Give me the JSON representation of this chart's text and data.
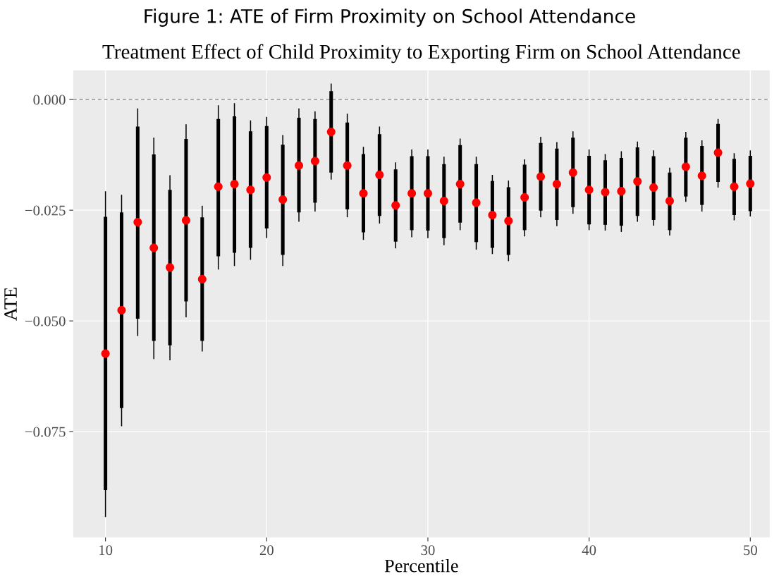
{
  "chart_data": {
    "type": "scatter",
    "title": "Figure 1: ATE of Firm Proximity on School Attendance",
    "subtitle": "Treatment Effect of Child Proximity to Exporting Firm on School Attendance",
    "xlabel": "Percentile",
    "ylabel": "ATE",
    "x": [
      10,
      11,
      12,
      13,
      14,
      15,
      16,
      17,
      18,
      19,
      20,
      21,
      22,
      23,
      24,
      25,
      26,
      27,
      28,
      29,
      30,
      31,
      32,
      33,
      34,
      35,
      36,
      37,
      38,
      39,
      40,
      41,
      42,
      43,
      44,
      45,
      46,
      47,
      48,
      49,
      50
    ],
    "series": [
      {
        "type": "bar",
        "color": "#000000",
        "base": [
          -0.0882,
          -0.0697,
          -0.0495,
          -0.0545,
          -0.0555,
          -0.0456,
          -0.0545,
          -0.0354,
          -0.0346,
          -0.0335,
          -0.0291,
          -0.0351,
          -0.0255,
          -0.0233,
          -0.0165,
          -0.0248,
          -0.03,
          -0.0263,
          -0.0321,
          -0.0295,
          -0.0296,
          -0.0313,
          -0.0278,
          -0.0322,
          -0.0335,
          -0.0351,
          -0.0295,
          -0.0251,
          -0.0272,
          -0.0243,
          -0.0282,
          -0.0283,
          -0.0285,
          -0.0263,
          -0.0272,
          -0.0295,
          -0.0219,
          -0.0238,
          -0.0186,
          -0.0261,
          -0.0252
        ],
        "values": [
          0.0617,
          0.0442,
          0.0434,
          0.0421,
          0.0351,
          0.0367,
          0.0279,
          0.031,
          0.0308,
          0.0263,
          0.0231,
          0.0249,
          0.0214,
          0.0189,
          0.0184,
          0.0196,
          0.0177,
          0.0185,
          0.0163,
          0.0167,
          0.0168,
          0.0167,
          0.0175,
          0.0176,
          0.0151,
          0.0153,
          0.0148,
          0.0153,
          0.0161,
          0.0157,
          0.0155,
          0.0146,
          0.0153,
          0.0155,
          0.0144,
          0.013,
          0.0133,
          0.0133,
          0.0131,
          0.0127,
          0.0125
        ]
      },
      {
        "color": "#ff0000",
        "marker": "circle",
        "values": [
          -0.0574,
          -0.0476,
          -0.0277,
          -0.0335,
          -0.0379,
          -0.0273,
          -0.0406,
          -0.0197,
          -0.0191,
          -0.0204,
          -0.0176,
          -0.0226,
          -0.0149,
          -0.0139,
          -0.0073,
          -0.0149,
          -0.0212,
          -0.017,
          -0.0239,
          -0.0212,
          -0.0212,
          -0.0229,
          -0.0191,
          -0.0233,
          -0.0261,
          -0.0274,
          -0.0221,
          -0.0174,
          -0.0191,
          -0.0165,
          -0.0204,
          -0.0209,
          -0.0207,
          -0.0185,
          -0.0199,
          -0.0229,
          -0.0152,
          -0.0172,
          -0.012,
          -0.0197,
          -0.019
        ],
        "errors": [
          [
            -0.0943,
            -0.0207
          ],
          [
            -0.0738,
            -0.0215
          ],
          [
            -0.0534,
            -0.002
          ],
          [
            -0.0586,
            -0.0086
          ],
          [
            -0.0589,
            -0.0171
          ],
          [
            -0.0492,
            -0.0056
          ],
          [
            -0.0569,
            -0.024
          ],
          [
            -0.0384,
            -0.0013
          ],
          [
            -0.0376,
            -0.0008
          ],
          [
            -0.0362,
            -0.0047
          ],
          [
            -0.0313,
            -0.0039
          ],
          [
            -0.0376,
            -0.008
          ],
          [
            -0.0276,
            -0.002
          ],
          [
            -0.0253,
            -0.0027
          ],
          [
            -0.0181,
            0.0036
          ],
          [
            -0.0266,
            -0.0032
          ],
          [
            -0.0317,
            -0.0107
          ],
          [
            -0.028,
            -0.0061
          ],
          [
            -0.0336,
            -0.0142
          ],
          [
            -0.0311,
            -0.0113
          ],
          [
            -0.0313,
            -0.0113
          ],
          [
            -0.0329,
            -0.0129
          ],
          [
            -0.0295,
            -0.0088
          ],
          [
            -0.0339,
            -0.0129
          ],
          [
            -0.0349,
            -0.017
          ],
          [
            -0.0365,
            -0.0183
          ],
          [
            -0.0309,
            -0.0135
          ],
          [
            -0.0266,
            -0.0084
          ],
          [
            -0.0286,
            -0.0096
          ],
          [
            -0.0258,
            -0.0072
          ],
          [
            -0.0295,
            -0.0113
          ],
          [
            -0.0296,
            -0.0123
          ],
          [
            -0.0299,
            -0.0117
          ],
          [
            -0.0276,
            -0.0095
          ],
          [
            -0.0285,
            -0.0115
          ],
          [
            -0.0307,
            -0.0154
          ],
          [
            -0.0231,
            -0.0073
          ],
          [
            -0.0253,
            -0.0092
          ],
          [
            -0.0199,
            -0.0044
          ],
          [
            -0.0273,
            -0.0121
          ],
          [
            -0.0264,
            -0.0115
          ]
        ]
      }
    ],
    "xlim": [
      8,
      51.2
    ],
    "xticks": [
      10,
      20,
      30,
      40,
      50
    ],
    "ylim": [
      -0.0989,
      0.0066
    ],
    "yticks": [
      {
        "value": -0.075,
        "label": "−0.075"
      },
      {
        "value": -0.05,
        "label": "−0.050"
      },
      {
        "value": -0.025,
        "label": "−0.025"
      },
      {
        "value": 0,
        "label": "0.000"
      }
    ],
    "ref_lines": [
      {
        "axis": "y",
        "value": 0,
        "color": "#808080",
        "line_style": "dashed"
      }
    ],
    "grid": true
  }
}
